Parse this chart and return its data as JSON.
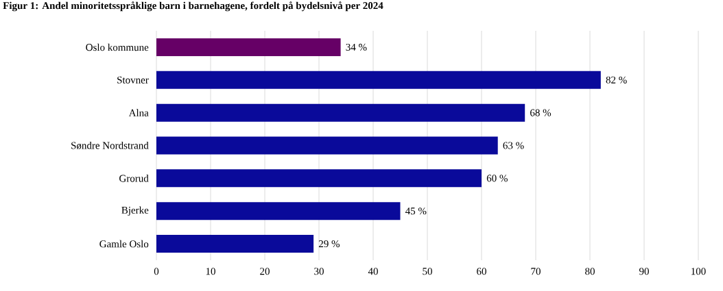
{
  "chart_data": {
    "type": "bar",
    "orientation": "horizontal",
    "title": "Figur 1: Andel minoritetsspråklige barn i barnehagene, fordelt på bydelsnivå per 2024",
    "categories": [
      "Oslo kommune",
      "Stovner",
      "Alna",
      "Søndre Nordstrand",
      "Grorud",
      "Bjerke",
      "Gamle Oslo"
    ],
    "values": [
      34,
      82,
      68,
      63,
      60,
      45,
      29
    ],
    "value_labels": [
      "34 %",
      "82 %",
      "68 %",
      "63 %",
      "60 %",
      "45 %",
      "29 %"
    ],
    "colors": [
      "#660066",
      "#0a0a9a",
      "#0a0a9a",
      "#0a0a9a",
      "#0a0a9a",
      "#0a0a9a",
      "#0a0a9a"
    ],
    "xlim": [
      0,
      100
    ],
    "xticks": [
      0,
      10,
      20,
      30,
      40,
      50,
      60,
      70,
      80,
      90,
      100
    ],
    "grid": "x"
  }
}
